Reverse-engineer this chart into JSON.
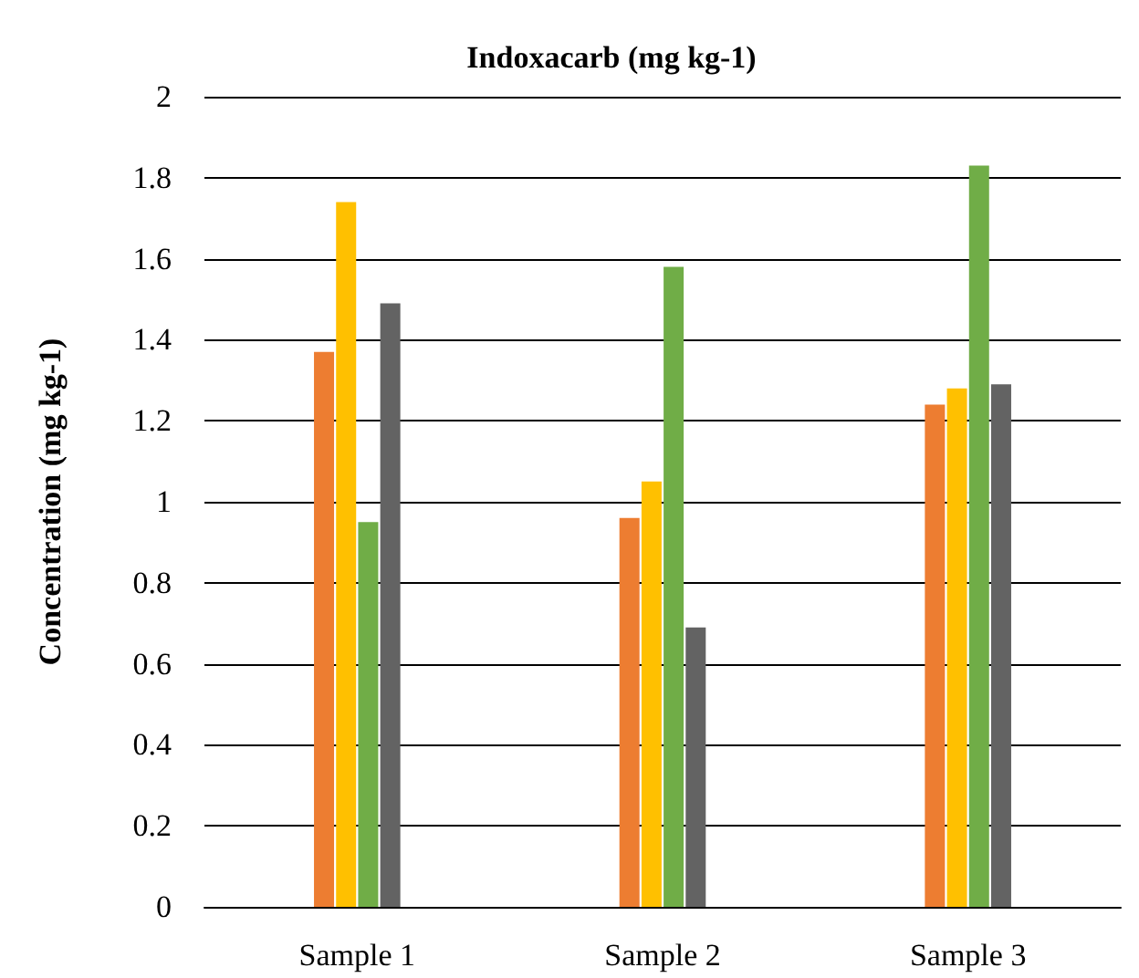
{
  "chart_data": {
    "type": "bar",
    "title": "Indoxacarb (mg kg-1)",
    "ylabel": "Concentration (mg kg-1)",
    "categories": [
      "Sample 1",
      "Sample 2",
      "Sample 3"
    ],
    "series": [
      {
        "color": "#ed7d31",
        "values": [
          1.37,
          0.96,
          1.24
        ]
      },
      {
        "color": "#ffc000",
        "values": [
          1.74,
          1.05,
          1.28
        ]
      },
      {
        "color": "#70ad47",
        "values": [
          0.95,
          1.58,
          1.83
        ]
      },
      {
        "color": "#636363",
        "values": [
          1.49,
          0.69,
          1.29
        ]
      }
    ],
    "ylim": [
      0,
      2
    ],
    "yticks": [
      0,
      0.2,
      0.4,
      0.6,
      0.8,
      1,
      1.2,
      1.4,
      1.6,
      1.8,
      2
    ],
    "grid": "y"
  }
}
